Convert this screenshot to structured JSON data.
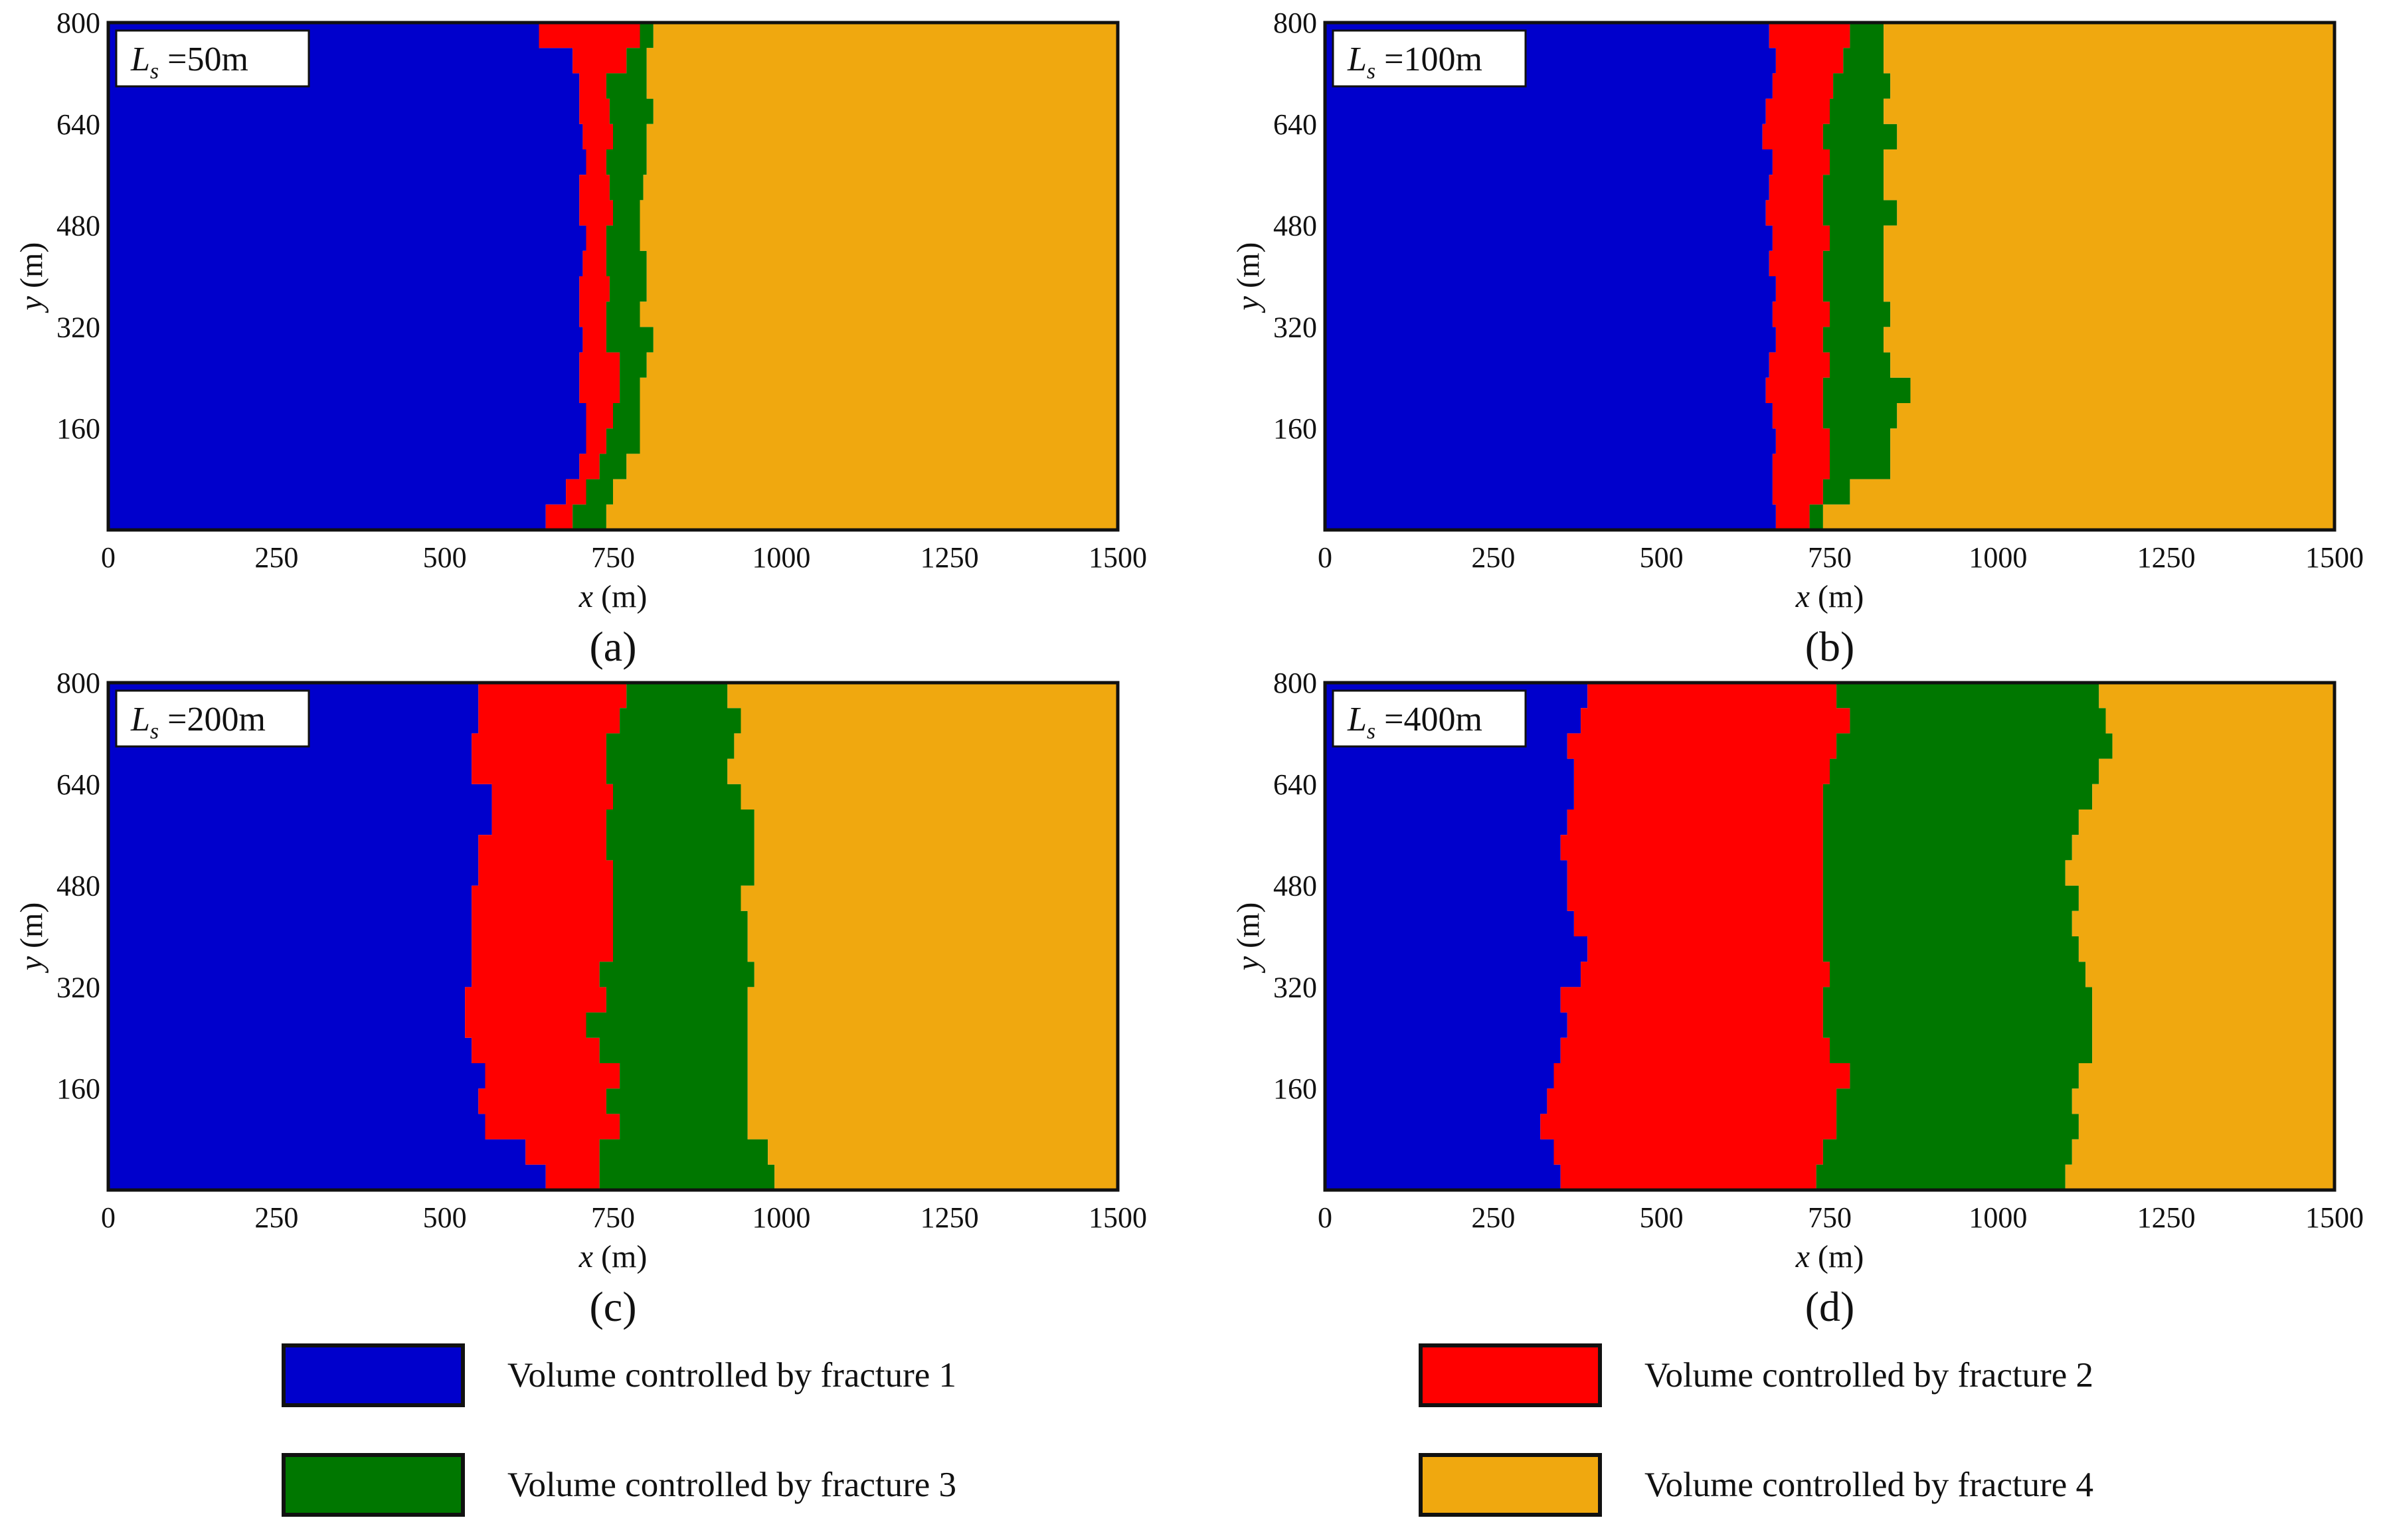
{
  "figure": {
    "colors": {
      "fracture1": "#0000CC",
      "fracture2": "#FF0000",
      "fracture3": "#007700",
      "fracture4": "#F0A80F"
    },
    "legend": [
      {
        "key": "fracture1",
        "label": "Volume controlled by fracture 1"
      },
      {
        "key": "fracture2",
        "label": "Volume controlled by fracture 2"
      },
      {
        "key": "fracture3",
        "label": "Volume controlled by fracture 3"
      },
      {
        "key": "fracture4",
        "label": "Volume controlled by fracture 4"
      }
    ]
  },
  "chart_data": [
    {
      "type": "area",
      "panel_label": "(a)",
      "annotation": {
        "prefix": "L",
        "subscript": "s",
        "value": " =50m"
      },
      "xlabel": "x (m)",
      "ylabel": "y (m)",
      "xlim": [
        0,
        1500
      ],
      "ylim": [
        0,
        800
      ],
      "xticks": [
        0,
        250,
        500,
        750,
        1000,
        1250,
        1500
      ],
      "yticks": [
        160,
        320,
        480,
        640,
        800
      ],
      "y": [
        0,
        40,
        80,
        120,
        160,
        200,
        240,
        280,
        320,
        360,
        400,
        440,
        480,
        520,
        560,
        600,
        640,
        680,
        720,
        760,
        800
      ],
      "boundaries": [
        {
          "name": "fracture 1 | fracture 2",
          "x": [
            650,
            680,
            700,
            710,
            710,
            700,
            700,
            705,
            700,
            700,
            705,
            710,
            700,
            700,
            710,
            705,
            700,
            700,
            690,
            640,
            580
          ]
        },
        {
          "name": "fracture 2 | fracture 3",
          "x": [
            690,
            710,
            730,
            740,
            750,
            760,
            760,
            740,
            740,
            745,
            740,
            740,
            750,
            745,
            740,
            750,
            745,
            740,
            770,
            790,
            800
          ]
        },
        {
          "name": "fracture 3 | fracture 4",
          "x": [
            740,
            750,
            770,
            790,
            790,
            790,
            800,
            810,
            790,
            800,
            800,
            790,
            790,
            795,
            800,
            800,
            810,
            800,
            800,
            810,
            810
          ]
        }
      ]
    },
    {
      "type": "area",
      "panel_label": "(b)",
      "annotation": {
        "prefix": "L",
        "subscript": "s",
        "value": " =100m"
      },
      "xlabel": "x (m)",
      "ylabel": "y (m)",
      "xlim": [
        0,
        1500
      ],
      "ylim": [
        0,
        800
      ],
      "xticks": [
        0,
        250,
        500,
        750,
        1000,
        1250,
        1500
      ],
      "yticks": [
        160,
        320,
        480,
        640,
        800
      ],
      "y": [
        0,
        40,
        80,
        120,
        160,
        200,
        240,
        280,
        320,
        360,
        400,
        440,
        480,
        520,
        560,
        600,
        640,
        680,
        720,
        760,
        800
      ],
      "boundaries": [
        {
          "name": "fracture 1 | fracture 2",
          "x": [
            670,
            665,
            665,
            670,
            665,
            655,
            660,
            670,
            665,
            670,
            660,
            665,
            655,
            660,
            665,
            650,
            655,
            665,
            670,
            660,
            640
          ]
        },
        {
          "name": "fracture 2 | fracture 3",
          "x": [
            720,
            740,
            750,
            750,
            740,
            740,
            750,
            740,
            750,
            740,
            740,
            750,
            740,
            740,
            750,
            740,
            750,
            755,
            770,
            780,
            790
          ]
        },
        {
          "name": "fracture 3 | fracture 4",
          "x": [
            740,
            780,
            840,
            840,
            850,
            870,
            840,
            830,
            840,
            830,
            830,
            830,
            850,
            830,
            830,
            850,
            830,
            840,
            830,
            830,
            830
          ]
        }
      ]
    },
    {
      "type": "area",
      "panel_label": "(c)",
      "annotation": {
        "prefix": "L",
        "subscript": "s",
        "value": " =200m"
      },
      "xlabel": "x (m)",
      "ylabel": "y (m)",
      "xlim": [
        0,
        1500
      ],
      "ylim": [
        0,
        800
      ],
      "xticks": [
        0,
        250,
        500,
        750,
        1000,
        1250,
        1500
      ],
      "yticks": [
        160,
        320,
        480,
        640,
        800
      ],
      "y": [
        0,
        40,
        80,
        120,
        160,
        200,
        240,
        280,
        320,
        360,
        400,
        440,
        480,
        520,
        560,
        600,
        640,
        680,
        720,
        760,
        800
      ],
      "boundaries": [
        {
          "name": "fracture 1 | fracture 2",
          "x": [
            650,
            620,
            560,
            550,
            560,
            540,
            530,
            530,
            540,
            540,
            540,
            540,
            550,
            550,
            570,
            570,
            540,
            540,
            550,
            550,
            530
          ]
        },
        {
          "name": "fracture 2 | fracture 3",
          "x": [
            730,
            730,
            760,
            740,
            760,
            730,
            710,
            740,
            730,
            750,
            750,
            750,
            750,
            740,
            740,
            750,
            740,
            740,
            760,
            770,
            770
          ]
        },
        {
          "name": "fracture 3 | fracture 4",
          "x": [
            990,
            980,
            950,
            950,
            950,
            950,
            950,
            950,
            960,
            950,
            950,
            940,
            960,
            960,
            960,
            940,
            920,
            930,
            940,
            920,
            930
          ]
        }
      ]
    },
    {
      "type": "area",
      "panel_label": "(d)",
      "annotation": {
        "prefix": "L",
        "subscript": "s",
        "value": " =400m"
      },
      "xlabel": "x (m)",
      "ylabel": "y (m)",
      "xlim": [
        0,
        1500
      ],
      "ylim": [
        0,
        800
      ],
      "xticks": [
        0,
        250,
        500,
        750,
        1000,
        1250,
        1500
      ],
      "yticks": [
        160,
        320,
        480,
        640,
        800
      ],
      "y": [
        0,
        40,
        80,
        120,
        160,
        200,
        240,
        280,
        320,
        360,
        400,
        440,
        480,
        520,
        560,
        600,
        640,
        680,
        720,
        760,
        800
      ],
      "boundaries": [
        {
          "name": "fracture 1 | fracture 2",
          "x": [
            350,
            340,
            320,
            330,
            340,
            350,
            360,
            350,
            380,
            390,
            370,
            360,
            360,
            350,
            360,
            370,
            370,
            360,
            380,
            390,
            360
          ]
        },
        {
          "name": "fracture 2 | fracture 3",
          "x": [
            730,
            740,
            760,
            760,
            780,
            750,
            740,
            740,
            750,
            740,
            740,
            740,
            740,
            740,
            740,
            740,
            750,
            760,
            780,
            760,
            760
          ]
        },
        {
          "name": "fracture 3 | fracture 4",
          "x": [
            1100,
            1110,
            1120,
            1110,
            1120,
            1140,
            1140,
            1140,
            1130,
            1120,
            1110,
            1120,
            1100,
            1110,
            1120,
            1140,
            1150,
            1170,
            1160,
            1150,
            1160
          ]
        }
      ]
    }
  ]
}
